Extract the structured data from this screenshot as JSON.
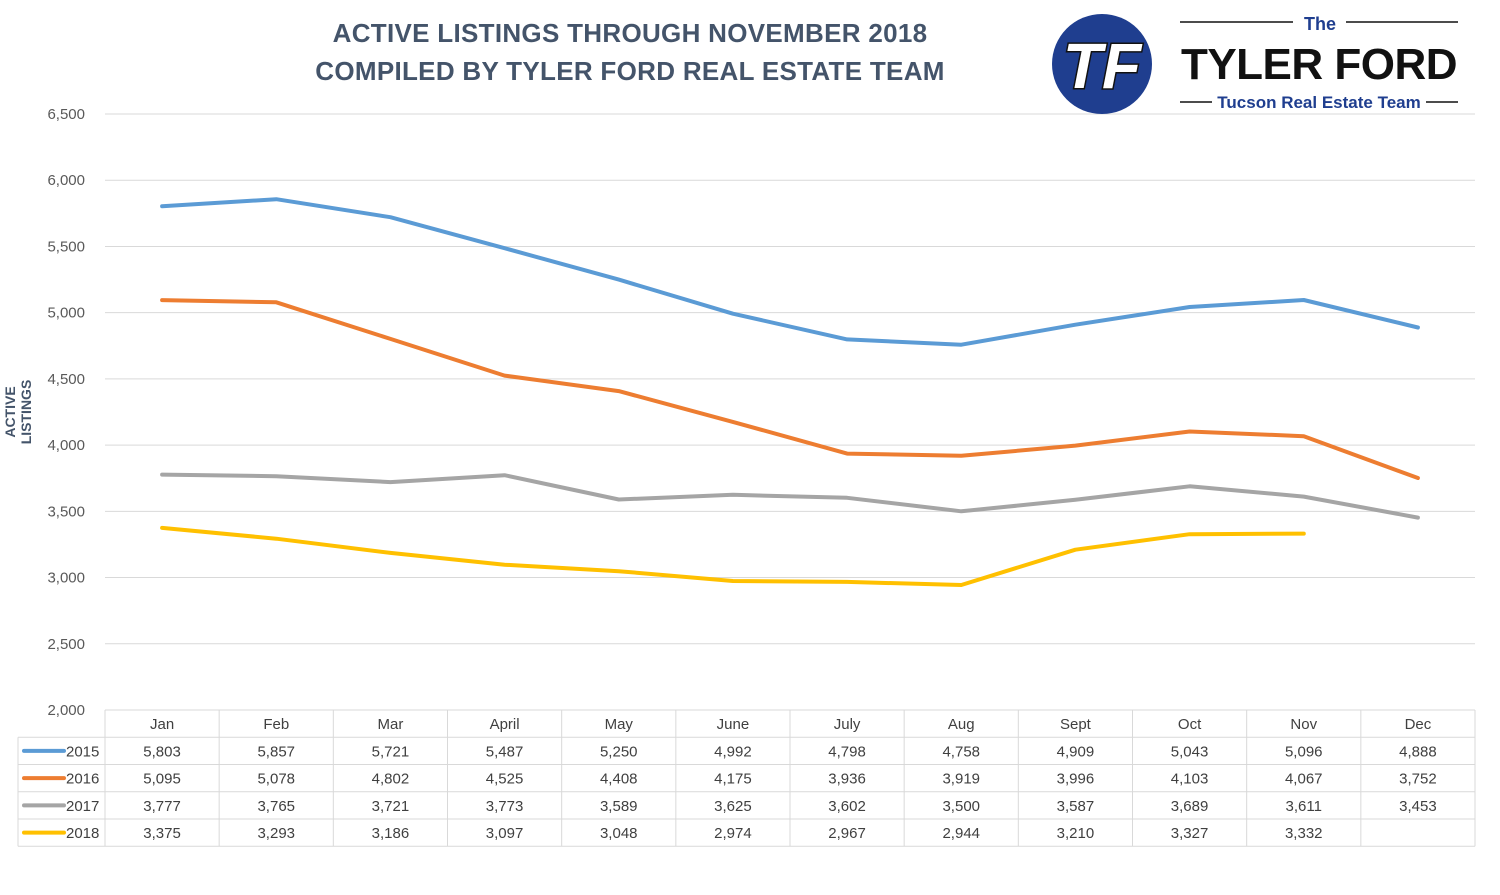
{
  "title_line1": "ACTIVE LISTINGS THROUGH NOVEMBER 2018",
  "title_line2": "COMPILED BY TYLER FORD REAL ESTATE TEAM",
  "logo": {
    "the": "The",
    "name": "TYLER FORD",
    "subtitle": "Tucson Real Estate Team",
    "monogram": "TF"
  },
  "colors": {
    "title": "#44546a",
    "2015": "#5b9bd5",
    "2016": "#ed7d31",
    "2017": "#a5a5a5",
    "2018": "#ffc000",
    "logo_blue": "#1f3e8f"
  },
  "chart_data": {
    "type": "line",
    "ylabel": "ACTIVE LISTINGS",
    "ylim": [
      2000,
      6500
    ],
    "yticks": [
      2000,
      2500,
      3000,
      3500,
      4000,
      4500,
      5000,
      5500,
      6000,
      6500
    ],
    "ytick_labels": [
      "2,000",
      "2,500",
      "3,000",
      "3,500",
      "4,000",
      "4,500",
      "5,000",
      "5,500",
      "6,000",
      "6,500"
    ],
    "grid": true,
    "legend": "data-table",
    "categories": [
      "Jan",
      "Feb",
      "Mar",
      "April",
      "May",
      "June",
      "July",
      "Aug",
      "Sept",
      "Oct",
      "Nov",
      "Dec"
    ],
    "series": [
      {
        "name": "2015",
        "color": "#5b9bd5",
        "values": [
          5803,
          5857,
          5721,
          5487,
          5250,
          4992,
          4798,
          4758,
          4909,
          5043,
          5096,
          4888
        ],
        "labels": [
          "5,803",
          "5,857",
          "5,721",
          "5,487",
          "5,250",
          "4,992",
          "4,798",
          "4,758",
          "4,909",
          "5,043",
          "5,096",
          "4,888"
        ]
      },
      {
        "name": "2016",
        "color": "#ed7d31",
        "values": [
          5095,
          5078,
          4802,
          4525,
          4408,
          4175,
          3936,
          3919,
          3996,
          4103,
          4067,
          3752
        ],
        "labels": [
          "5,095",
          "5,078",
          "4,802",
          "4,525",
          "4,408",
          "4,175",
          "3,936",
          "3,919",
          "3,996",
          "4,103",
          "4,067",
          "3,752"
        ]
      },
      {
        "name": "2017",
        "color": "#a5a5a5",
        "values": [
          3777,
          3765,
          3721,
          3773,
          3589,
          3625,
          3602,
          3500,
          3587,
          3689,
          3611,
          3453
        ],
        "labels": [
          "3,777",
          "3,765",
          "3,721",
          "3,773",
          "3,589",
          "3,625",
          "3,602",
          "3,500",
          "3,587",
          "3,689",
          "3,611",
          "3,453"
        ]
      },
      {
        "name": "2018",
        "color": "#ffc000",
        "values": [
          3375,
          3293,
          3186,
          3097,
          3048,
          2974,
          2967,
          2944,
          3210,
          3327,
          3332,
          null
        ],
        "labels": [
          "3,375",
          "3,293",
          "3,186",
          "3,097",
          "3,048",
          "2,974",
          "2,967",
          "2,944",
          "3,210",
          "3,327",
          "3,332",
          ""
        ]
      }
    ]
  }
}
